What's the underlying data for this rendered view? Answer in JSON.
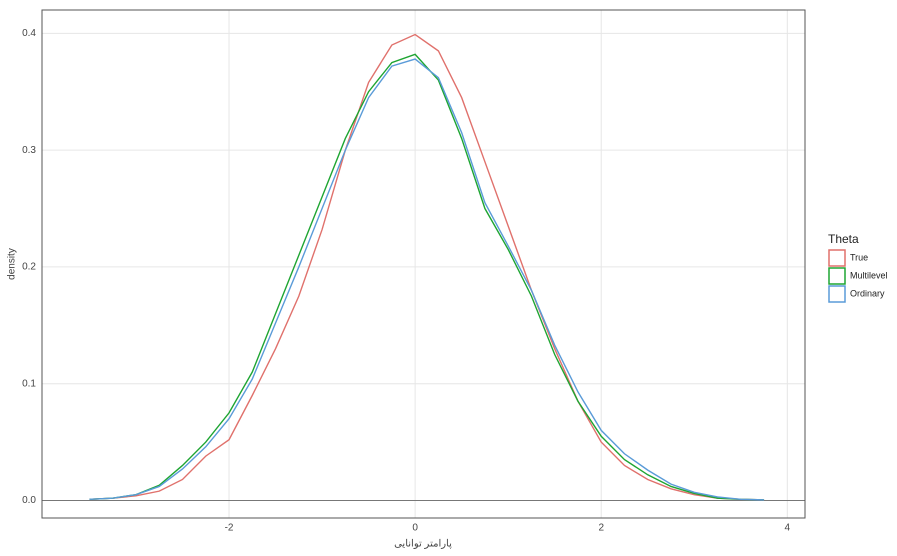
{
  "chart_data": {
    "type": "line",
    "xlabel": "پارامتر توانایی",
    "ylabel": "density",
    "legend_title": "Theta",
    "x": [
      -3.5,
      -3.25,
      -3,
      -2.75,
      -2.5,
      -2.25,
      -2,
      -1.75,
      -1.5,
      -1.25,
      -1,
      -0.75,
      -0.5,
      -0.25,
      0,
      0.25,
      0.5,
      0.75,
      1,
      1.25,
      1.5,
      1.75,
      2,
      2.25,
      2.5,
      2.75,
      3,
      3.25,
      3.5,
      3.75
    ],
    "series": [
      {
        "name": "True",
        "color": "#e0716c",
        "values": [
          0.001,
          0.002,
          0.004,
          0.008,
          0.018,
          0.038,
          0.052,
          0.09,
          0.13,
          0.175,
          0.232,
          0.3,
          0.358,
          0.39,
          0.399,
          0.385,
          0.345,
          0.29,
          0.235,
          0.18,
          0.13,
          0.085,
          0.05,
          0.03,
          0.018,
          0.01,
          0.005,
          0.002,
          0.001,
          0.0005
        ]
      },
      {
        "name": "Multilevel",
        "color": "#1ea532",
        "values": [
          0.001,
          0.002,
          0.005,
          0.013,
          0.03,
          0.05,
          0.075,
          0.11,
          0.16,
          0.21,
          0.26,
          0.31,
          0.35,
          0.375,
          0.382,
          0.36,
          0.31,
          0.25,
          0.215,
          0.175,
          0.125,
          0.085,
          0.055,
          0.035,
          0.022,
          0.012,
          0.006,
          0.002,
          0.001,
          0.0005
        ]
      },
      {
        "name": "Ordinary",
        "color": "#5a9bd8",
        "values": [
          0.001,
          0.002,
          0.005,
          0.012,
          0.027,
          0.046,
          0.07,
          0.104,
          0.152,
          0.2,
          0.25,
          0.3,
          0.345,
          0.372,
          0.378,
          0.362,
          0.315,
          0.255,
          0.218,
          0.18,
          0.133,
          0.093,
          0.06,
          0.04,
          0.026,
          0.014,
          0.007,
          0.003,
          0.001,
          0.0005
        ]
      }
    ],
    "xlim": [
      -4.01,
      4.19
    ],
    "xticks": [
      -2,
      0,
      2,
      4
    ],
    "ylim": [
      -0.015,
      0.42
    ],
    "yticks": [
      {
        "value": 0,
        "label": "0.0"
      },
      0.1,
      0.2,
      0.3,
      0.4
    ],
    "grid": true,
    "legend": "right"
  }
}
